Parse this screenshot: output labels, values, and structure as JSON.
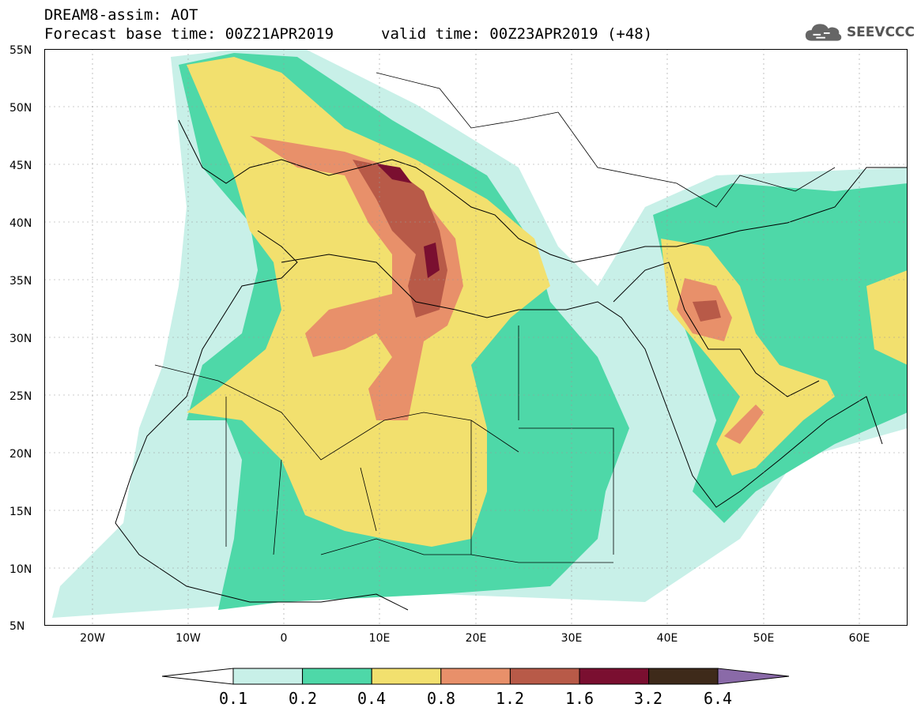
{
  "header": {
    "line1": "DREAM8-assim: AOT",
    "line2": "Forecast base time: 00Z21APR2019",
    "line3": "valid time: 00Z23APR2019 (+48)"
  },
  "logo": {
    "text": "SEEVCCC",
    "icon": "cloud-icon"
  },
  "map": {
    "lat_labels": [
      "55N",
      "50N",
      "45N",
      "40N",
      "35N",
      "30N",
      "25N",
      "20N",
      "15N",
      "10N",
      "5N"
    ],
    "lon_labels": [
      "20W",
      "10W",
      "0",
      "10E",
      "20E",
      "30E",
      "40E",
      "50E",
      "60E"
    ],
    "lat_range": [
      5,
      55
    ],
    "lon_range": [
      -25,
      65
    ],
    "grid": "dashed"
  },
  "colorbar": {
    "labels": [
      "0.1",
      "0.2",
      "0.4",
      "0.8",
      "1.2",
      "1.6",
      "3.2",
      "6.4"
    ],
    "colors": [
      "#c8f0e8",
      "#4ed8a8",
      "#f2e06e",
      "#e8906a",
      "#b85a48",
      "#7a0f30",
      "#3e2a1a",
      "#8a6aa8"
    ]
  }
}
